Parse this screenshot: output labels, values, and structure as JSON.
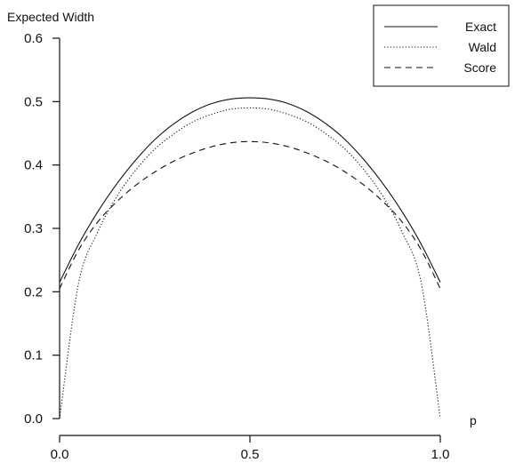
{
  "chart_data": {
    "type": "line",
    "title": "",
    "xlabel": "p",
    "ylabel": "Expected Width",
    "xlim": [
      0.0,
      1.0
    ],
    "ylim": [
      0.0,
      0.6
    ],
    "x_ticks": [
      "0.0",
      "0.5",
      "1.0"
    ],
    "x_tick_values": [
      0.0,
      0.5,
      1.0
    ],
    "y_ticks": [
      "0.0",
      "0.1",
      "0.2",
      "0.3",
      "0.4",
      "0.5",
      "0.6"
    ],
    "y_tick_values": [
      0.0,
      0.1,
      0.2,
      0.3,
      0.4,
      0.5,
      0.6
    ],
    "grid": false,
    "legend_position": "top-right",
    "x": [
      0.0,
      0.05,
      0.1,
      0.15,
      0.2,
      0.25,
      0.3,
      0.35,
      0.4,
      0.45,
      0.5,
      0.55,
      0.6,
      0.65,
      0.7,
      0.75,
      0.8,
      0.85,
      0.9,
      0.95,
      1.0
    ],
    "series": [
      {
        "name": "Exact",
        "style": "solid",
        "values": [
          0.215,
          0.275,
          0.326,
          0.37,
          0.408,
          0.44,
          0.465,
          0.484,
          0.497,
          0.504,
          0.506,
          0.504,
          0.497,
          0.484,
          0.465,
          0.44,
          0.408,
          0.37,
          0.326,
          0.275,
          0.215
        ]
      },
      {
        "name": "Wald",
        "style": "dotted",
        "values": [
          0.0,
          0.214,
          0.294,
          0.35,
          0.392,
          0.425,
          0.449,
          0.468,
          0.48,
          0.488,
          0.49,
          0.488,
          0.48,
          0.468,
          0.449,
          0.425,
          0.392,
          0.35,
          0.294,
          0.214,
          0.0
        ]
      },
      {
        "name": "Score",
        "style": "dashed",
        "values": [
          0.205,
          0.266,
          0.31,
          0.342,
          0.368,
          0.389,
          0.406,
          0.419,
          0.429,
          0.435,
          0.437,
          0.435,
          0.429,
          0.419,
          0.406,
          0.389,
          0.368,
          0.342,
          0.31,
          0.266,
          0.205
        ]
      }
    ]
  }
}
